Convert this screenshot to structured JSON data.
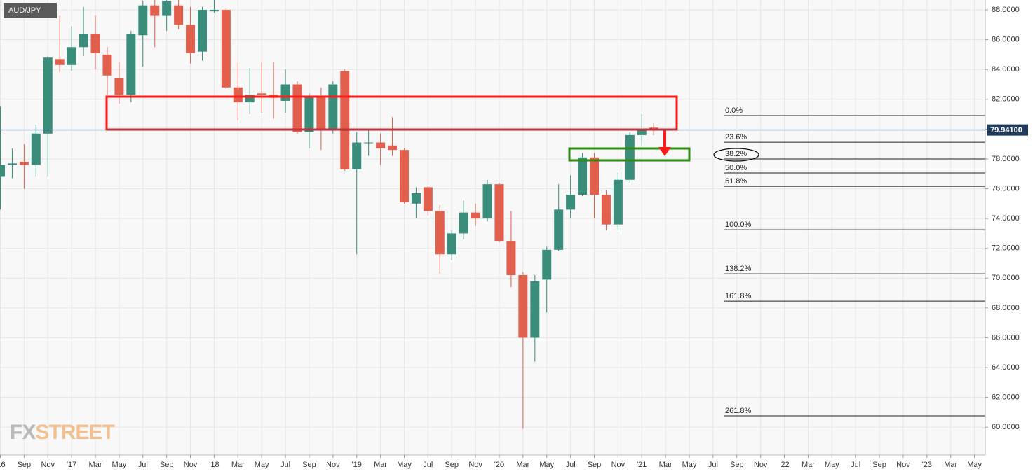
{
  "chart_data": {
    "type": "candlestick",
    "symbol": "AUD/JPY",
    "watermark": [
      "FX",
      "STREET"
    ],
    "categories": [
      "'16",
      null,
      "Sep",
      null,
      "Nov",
      null,
      "'17",
      null,
      "Mar",
      null,
      "May",
      null,
      "Jul",
      null,
      "Sep",
      null,
      "Nov",
      null,
      "'18",
      null,
      "Mar",
      null,
      "May",
      null,
      "Jul",
      null,
      "Sep",
      null,
      "Nov",
      null,
      "'19",
      null,
      "Mar",
      null,
      "May",
      null,
      "Jul",
      null,
      "Sep",
      null,
      "Nov",
      null,
      "'20",
      null,
      "Mar",
      null,
      "May",
      null,
      "Jul",
      null,
      "Sep",
      null,
      "Nov",
      null,
      "'21",
      null,
      "Mar",
      null,
      "May",
      null,
      "Jul",
      null,
      "Sep",
      null,
      "Nov",
      null,
      "'22",
      null,
      "Mar",
      null,
      "May",
      null,
      "Jul",
      null,
      "Sep",
      null,
      "Nov",
      null,
      "'23",
      null,
      "Mar",
      null,
      "May"
    ],
    "open": [
      76.8,
      77.6,
      77.8,
      77.6,
      79.7,
      84.7,
      84.3,
      85.5,
      86.4,
      85.0,
      83.4,
      82.3,
      86.3,
      88.3,
      87.6,
      88.3,
      87.0,
      85.2,
      87.9,
      88.0,
      82.8,
      81.8,
      82.4,
      82.3,
      81.9,
      83.0,
      79.8,
      82.2,
      80.0,
      83.9,
      77.3,
      79.1,
      79.1,
      78.9,
      78.6,
      75.0,
      76.1,
      74.5,
      71.6,
      73.0,
      74.4,
      74.0,
      76.3,
      72.5,
      70.2,
      66.0,
      69.9,
      71.9,
      74.6,
      75.6,
      78.1,
      75.6,
      73.6,
      76.6,
      79.6,
      80.1,
      null,
      null,
      null,
      null,
      null,
      null,
      null,
      null,
      null,
      null,
      null,
      null,
      null,
      null,
      null,
      null,
      null,
      null,
      null,
      null,
      null,
      null,
      null,
      null,
      null,
      null,
      null
    ],
    "high": [
      81.5,
      78.7,
      79.0,
      80.3,
      84.9,
      87.6,
      86.9,
      88.2,
      87.6,
      85.5,
      84.5,
      86.6,
      88.6,
      88.7,
      88.7,
      88.7,
      88.2,
      88.2,
      88.7,
      88.1,
      84.5,
      84.1,
      84.5,
      84.5,
      84.0,
      83.2,
      82.4,
      82.8,
      83.2,
      84.0,
      79.8,
      79.9,
      79.7,
      80.8,
      78.7,
      76.1,
      76.2,
      74.9,
      73.2,
      75.2,
      75.0,
      76.6,
      76.4,
      74.5,
      70.4,
      70.2,
      72.1,
      76.3,
      76.9,
      78.4,
      78.4,
      75.9,
      77.1,
      79.8,
      81.0,
      80.4,
      null,
      null,
      null,
      null,
      null,
      null,
      null,
      null,
      null,
      null,
      null,
      null,
      null,
      null,
      null,
      null,
      null,
      null,
      null,
      null,
      null,
      null,
      null,
      null,
      null,
      null,
      null
    ],
    "low": [
      74.6,
      76.7,
      76.0,
      76.8,
      76.8,
      83.8,
      83.9,
      84.9,
      84.0,
      82.3,
      81.7,
      81.8,
      84.2,
      85.5,
      86.6,
      86.7,
      84.4,
      84.6,
      87.8,
      82.7,
      80.6,
      81.0,
      81.1,
      80.7,
      81.1,
      79.7,
      78.7,
      78.6,
      79.7,
      77.2,
      71.6,
      78.2,
      77.6,
      78.2,
      75.0,
      74.0,
      74.2,
      70.3,
      71.2,
      72.6,
      73.5,
      73.8,
      72.4,
      69.4,
      59.9,
      64.4,
      67.7,
      71.8,
      74.0,
      75.5,
      74.0,
      73.2,
      73.2,
      76.4,
      78.9,
      79.6,
      null,
      null,
      null,
      null,
      null,
      null,
      null,
      null,
      null,
      null,
      null,
      null,
      null,
      null,
      null,
      null,
      null,
      null,
      null,
      null,
      null,
      null,
      null,
      null,
      null,
      null,
      null
    ],
    "close": [
      77.6,
      77.7,
      77.6,
      79.7,
      84.8,
      84.3,
      85.5,
      86.4,
      85.1,
      83.6,
      82.3,
      86.4,
      88.3,
      87.6,
      88.6,
      87.0,
      85.1,
      88.0,
      88.0,
      82.8,
      81.8,
      82.3,
      82.3,
      82.1,
      83.0,
      79.8,
      82.2,
      80.0,
      83.0,
      77.3,
      79.1,
      79.1,
      78.7,
      78.6,
      75.1,
      75.7,
      74.5,
      71.6,
      73.0,
      74.4,
      74.0,
      76.3,
      72.5,
      70.2,
      66.0,
      69.8,
      71.9,
      74.6,
      75.6,
      78.1,
      75.6,
      73.6,
      76.6,
      79.6,
      79.9,
      79.941,
      null,
      null,
      null,
      null,
      null,
      null,
      null,
      null,
      null,
      null,
      null,
      null,
      null,
      null,
      null,
      null,
      null,
      null,
      null,
      null,
      null,
      null,
      null,
      null,
      null,
      null,
      null
    ],
    "up_color": "#3a8c7b",
    "down_color": "#e0604d",
    "ylim": [
      58.13,
      88.66
    ],
    "yticks": [
      {
        "value": 60,
        "label": "60.0000"
      },
      {
        "value": 62,
        "label": "62.0000"
      },
      {
        "value": 64,
        "label": "64.0000"
      },
      {
        "value": 66,
        "label": "66.0000"
      },
      {
        "value": 68,
        "label": "68.0000"
      },
      {
        "value": 70,
        "label": "70.0000"
      },
      {
        "value": 72,
        "label": "72.0000"
      },
      {
        "value": 74,
        "label": "74.0000"
      },
      {
        "value": 76,
        "label": "76.0000"
      },
      {
        "value": 78,
        "label": "78.0000"
      },
      {
        "value": 80,
        "label": "80.0000"
      },
      {
        "value": 82,
        "label": "82.0000"
      },
      {
        "value": 84,
        "label": "84.0000"
      },
      {
        "value": 86,
        "label": "86.0000"
      },
      {
        "value": 88,
        "label": "88.0000"
      }
    ],
    "last_price": {
      "value": 79.941,
      "label": "79.94100"
    },
    "fib_levels": [
      {
        "label": "0.0%",
        "value": 80.91
      },
      {
        "label": "23.6%",
        "value": 79.12
      },
      {
        "label": "38.2%",
        "value": 78.0
      },
      {
        "label": "50.0%",
        "value": 77.06
      },
      {
        "label": "61.8%",
        "value": 76.16
      },
      {
        "label": "100.0%",
        "value": 73.25
      },
      {
        "label": "138.2%",
        "value": 70.29
      },
      {
        "label": "161.8%",
        "value": 68.46
      },
      {
        "label": "261.8%",
        "value": 60.76
      }
    ],
    "grid": true
  }
}
